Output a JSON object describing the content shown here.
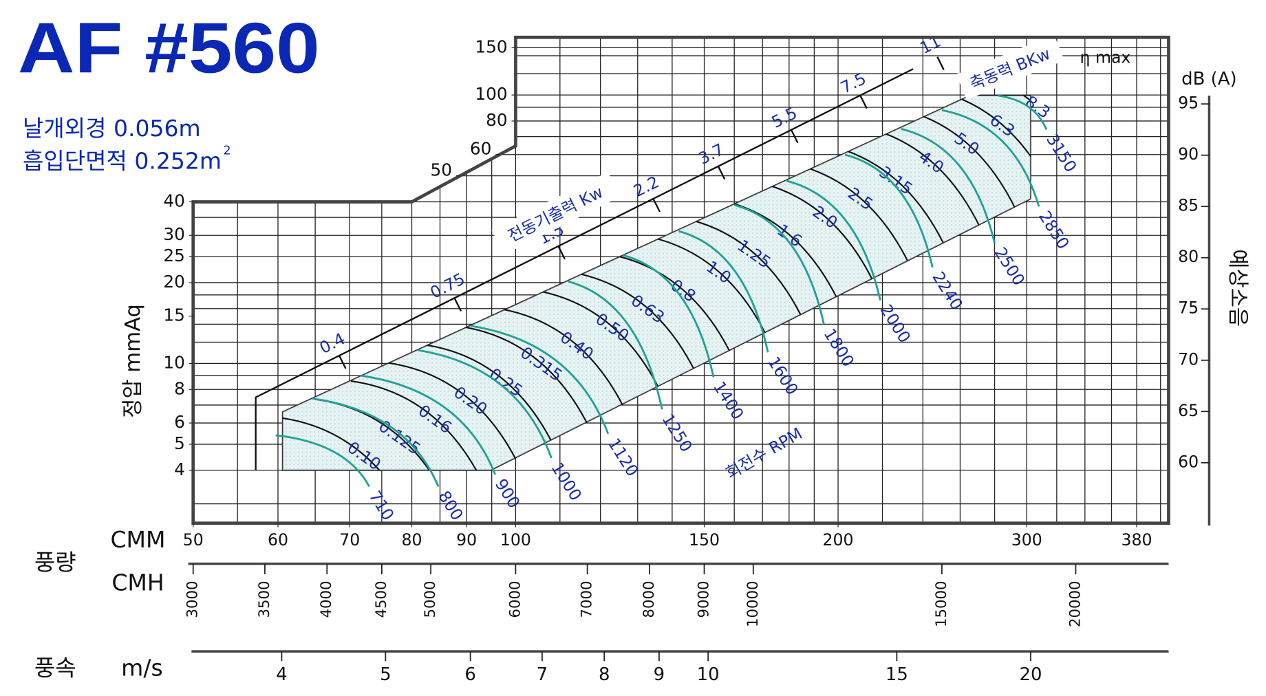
{
  "chart_data": {
    "type": "fan-curve",
    "title": "AF #560",
    "subtitle_lines": [
      "날개외경 0.056m",
      "흡입단면적 0.252m"
    ],
    "subtitle_sup": "2",
    "flow_label": "풍량",
    "xlabel": "CMM",
    "ylabel": "정압 mmAq",
    "y2label": "예상소음",
    "y2unit": "dB (A)",
    "log_x": true,
    "log_y": true,
    "xlim": [
      50,
      407
    ],
    "ylim": [
      2.54,
      164
    ],
    "xticks": [
      50,
      60,
      70,
      80,
      90,
      100,
      150,
      200,
      300,
      380
    ],
    "xgrid": [
      55,
      60,
      65,
      70,
      75,
      80,
      85,
      90,
      95,
      100,
      110,
      120,
      130,
      140,
      150,
      160,
      170,
      180,
      190,
      200,
      220,
      240,
      260,
      280,
      300,
      320,
      340,
      360,
      380,
      400
    ],
    "yticks": [
      4,
      5,
      6,
      8,
      10,
      15,
      20,
      25,
      30,
      40,
      50,
      60,
      80,
      100,
      150
    ],
    "ygrid": [
      3,
      4,
      5,
      6,
      7,
      8,
      9,
      10,
      12,
      14,
      16,
      18,
      20,
      25,
      30,
      35,
      40,
      50,
      60,
      70,
      80,
      90,
      100,
      120,
      140,
      150
    ],
    "frame_knee": [
      [
        80,
        40
      ],
      [
        100,
        64.6
      ]
    ],
    "y2lim": [
      54.1,
      101.5
    ],
    "y2ticks": [
      60,
      65,
      70,
      75,
      80,
      85,
      90,
      95
    ],
    "cmh": {
      "label": "CMH",
      "lim": [
        3000,
        24420
      ],
      "ticks": [
        3000,
        3500,
        4000,
        4500,
        5000,
        6000,
        7000,
        8000,
        9000,
        10000,
        15000,
        20000
      ]
    },
    "speed": {
      "group_label": "풍속",
      "label": "m/s",
      "lim": [
        3.307,
        26.9
      ],
      "ticks": [
        4,
        5,
        6,
        7,
        8,
        9,
        10,
        15,
        20
      ]
    },
    "region": {
      "x": [
        60.6,
        60.6,
        265.5,
        302.5,
        302.5,
        94.8
      ],
      "y": [
        4,
        6.6,
        99.5,
        99.5,
        41,
        4
      ],
      "color": "#e2f1f0"
    },
    "motor": {
      "label": "전동기출력 Kw",
      "line_x": [
        57.2,
        57.2,
        235
      ],
      "line_y": [
        4,
        7.48,
        125
      ],
      "values": [
        0.4,
        0.75,
        1.5,
        2.2,
        3.7,
        5.5,
        7.5,
        11
      ]
    },
    "shaft_power": {
      "label": "축동력 BKw",
      "values": [
        0.1,
        0.125,
        0.16,
        0.2,
        0.25,
        0.315,
        0.4,
        0.5,
        0.63,
        0.8,
        1.0,
        1.25,
        1.6,
        2.0,
        2.5,
        3.15,
        4.0,
        5.0,
        6.3,
        8.3
      ],
      "value_labels": [
        "0.10",
        "0.125",
        "0.16",
        "0.20",
        "0.25",
        "0.315",
        "0.40",
        "0.50",
        "0.63",
        "0.8",
        "1.0",
        "1.25",
        "1.6",
        "2.0",
        "2.5",
        "3.15",
        "4.0",
        "5.0",
        "6.3",
        "8.3"
      ]
    },
    "rpm": {
      "label": "회전수 RPM",
      "color": "#22a196",
      "values": [
        710,
        800,
        900,
        1000,
        1120,
        1250,
        1400,
        1600,
        1800,
        2000,
        2240,
        2500,
        2850,
        3150
      ],
      "start_x": [
        59.7,
        64.6,
        71.8,
        81.1,
        90.8,
        112,
        126,
        142,
        160,
        179,
        203,
        229,
        250,
        282
      ],
      "start_y": [
        5.4,
        7.4,
        9.0,
        11.2,
        13.8,
        20.2,
        25.3,
        31.1,
        38.9,
        47.9,
        59.9,
        74.8,
        87.8,
        99.5
      ],
      "end_x": [
        73.0,
        84.7,
        95.7,
        108,
        122,
        137,
        153,
        172,
        194,
        219,
        245,
        280,
        308,
        313
      ],
      "end_y": [
        3.48,
        3.48,
        3.86,
        4.44,
        5.47,
        6.74,
        8.9,
        11.0,
        14.0,
        17.2,
        22.8,
        28.1,
        38.4,
        74.3
      ]
    },
    "eta_label": "η max"
  }
}
